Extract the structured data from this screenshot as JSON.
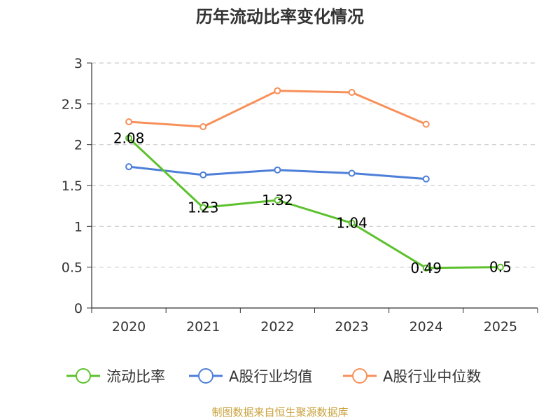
{
  "chart_data": {
    "type": "line",
    "title": "历年流动比率变化情况",
    "categories": [
      "2020",
      "2021",
      "2022",
      "2023",
      "2024",
      "2025"
    ],
    "ylim": [
      0,
      3
    ],
    "yticks": [
      "0",
      "0.5",
      "1",
      "1.5",
      "2",
      "2.5",
      "3"
    ],
    "grid": true,
    "legend_position": "bottom",
    "series": [
      {
        "name": "流动比率",
        "color": "#5cc12d",
        "values": [
          2.08,
          1.23,
          1.32,
          1.04,
          0.49,
          0.5
        ],
        "labels": [
          "2.08",
          "1.23",
          "1.32",
          "1.04",
          "0.49",
          "0.5"
        ]
      },
      {
        "name": "A股行业均值",
        "color": "#4e7fd8",
        "values": [
          1.73,
          1.63,
          1.69,
          1.65,
          1.58,
          null
        ]
      },
      {
        "name": "A股行业中位数",
        "color": "#f7905a",
        "values": [
          2.28,
          2.22,
          2.66,
          2.64,
          2.25,
          null
        ]
      }
    ],
    "source": "制图数据来自恒生聚源数据库",
    "source_color": "#c8a23c"
  }
}
